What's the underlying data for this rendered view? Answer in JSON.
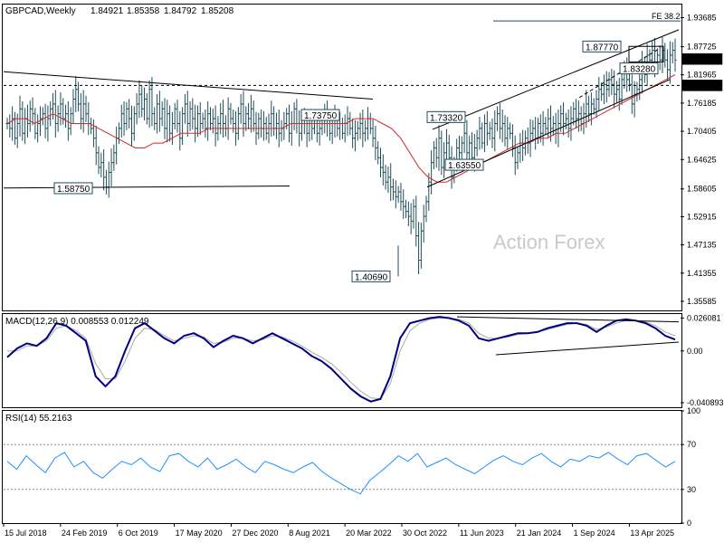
{
  "chart_data": {
    "type": "ohlc",
    "title": "GBPCAD,Weekly",
    "ohlc_readout": [
      "1.84921",
      "1.85358",
      "1.84792",
      "1.85208"
    ],
    "watermark": "Action Forex",
    "colors": {
      "bars": "#1f4e5a",
      "ma": "#d42b2b",
      "macd": "#000080",
      "signal": "#a8a8a8",
      "rsi": "#1e90ff",
      "frame": "#000000"
    },
    "x_labels": [
      "15 Jul 2018",
      "24 Feb 2019",
      "6 Oct 2019",
      "17 May 2020",
      "27 Dec 2020",
      "8 Aug 2021",
      "20 Mar 2022",
      "30 Oct 2022",
      "11 Jun 2023",
      "21 Jan 2024",
      "1 Sep 2024",
      "13 Apr 2025"
    ],
    "price_panel": {
      "ylim": [
        1.3372,
        1.9637
      ],
      "y_ticks": [
        "1.93685",
        "1.87725",
        "1.81965",
        "1.76185",
        "1.70405",
        "1.64625",
        "1.58605",
        "1.52915",
        "1.47135",
        "1.41355",
        "1.35585"
      ],
      "current_price": "1.85208",
      "marked_level": "1.79800",
      "fib_label": "FE 38.2",
      "annotations": [
        "1.87770",
        "1.83280",
        "1.73320",
        "1.63550",
        "1.73750",
        "1.58750",
        "1.40690"
      ],
      "closes": [
        1.72,
        1.71,
        1.73,
        1.69,
        1.72,
        1.75,
        1.7,
        1.73,
        1.72,
        1.75,
        1.74,
        1.7,
        1.72,
        1.73,
        1.74,
        1.71,
        1.73,
        1.75,
        1.76,
        1.72,
        1.74,
        1.76,
        1.73,
        1.74,
        1.71,
        1.74,
        1.77,
        1.79,
        1.76,
        1.73,
        1.76,
        1.74,
        1.72,
        1.71,
        1.69,
        1.66,
        1.63,
        1.64,
        1.61,
        1.59,
        1.62,
        1.64,
        1.66,
        1.69,
        1.71,
        1.74,
        1.72,
        1.75,
        1.73,
        1.7,
        1.74,
        1.76,
        1.78,
        1.75,
        1.77,
        1.73,
        1.79,
        1.74,
        1.72,
        1.76,
        1.73,
        1.75,
        1.71,
        1.74,
        1.7,
        1.72,
        1.75,
        1.72,
        1.69,
        1.74,
        1.76,
        1.72,
        1.75,
        1.73,
        1.71,
        1.74,
        1.72,
        1.73,
        1.71,
        1.74,
        1.72,
        1.73,
        1.7,
        1.72,
        1.74,
        1.72,
        1.71,
        1.75,
        1.73,
        1.72,
        1.7,
        1.74,
        1.76,
        1.72,
        1.74,
        1.73,
        1.75,
        1.72,
        1.7,
        1.73,
        1.71,
        1.72,
        1.7,
        1.72,
        1.74,
        1.71,
        1.72,
        1.7,
        1.71,
        1.72,
        1.74,
        1.7,
        1.72,
        1.75,
        1.72,
        1.7,
        1.73,
        1.72,
        1.7,
        1.72,
        1.71,
        1.73,
        1.7,
        1.71,
        1.72,
        1.74,
        1.72,
        1.7,
        1.72,
        1.73,
        1.71,
        1.72,
        1.7,
        1.72,
        1.73,
        1.71,
        1.69,
        1.7,
        1.71,
        1.72,
        1.7,
        1.71,
        1.73,
        1.71,
        1.69,
        1.67,
        1.65,
        1.63,
        1.62,
        1.6,
        1.61,
        1.59,
        1.58,
        1.57,
        1.58,
        1.56,
        1.55,
        1.54,
        1.53,
        1.52,
        1.55,
        1.49,
        1.44,
        1.5,
        1.53,
        1.56,
        1.6,
        1.64,
        1.67,
        1.65,
        1.69,
        1.63,
        1.66,
        1.68,
        1.65,
        1.61,
        1.64,
        1.67,
        1.66,
        1.68,
        1.7,
        1.66,
        1.68,
        1.65,
        1.67,
        1.69,
        1.71,
        1.68,
        1.72,
        1.7,
        1.71,
        1.69,
        1.72,
        1.74,
        1.71,
        1.72,
        1.69,
        1.71,
        1.7,
        1.67,
        1.64,
        1.66,
        1.68,
        1.67,
        1.69,
        1.68,
        1.7,
        1.71,
        1.69,
        1.72,
        1.7,
        1.72,
        1.71,
        1.73,
        1.71,
        1.72,
        1.7,
        1.72,
        1.74,
        1.72,
        1.73,
        1.71,
        1.73,
        1.75,
        1.73,
        1.74,
        1.72,
        1.74,
        1.76,
        1.74,
        1.76,
        1.75,
        1.77,
        1.79,
        1.78,
        1.8,
        1.79,
        1.81,
        1.8,
        1.78,
        1.79,
        1.77,
        1.81,
        1.83,
        1.81,
        1.8,
        1.76,
        1.78,
        1.79,
        1.81,
        1.84,
        1.82,
        1.86,
        1.85,
        1.87,
        1.84,
        1.86,
        1.85,
        1.87,
        1.85,
        1.83,
        1.86,
        1.87,
        1.85
      ],
      "ma": [
        1.72,
        1.73,
        1.73,
        1.72,
        1.73,
        1.74,
        1.73,
        1.72,
        1.72,
        1.72,
        1.71,
        1.7,
        1.69,
        1.68,
        1.67,
        1.67,
        1.68,
        1.68,
        1.69,
        1.7,
        1.7,
        1.7,
        1.71,
        1.71,
        1.71,
        1.71,
        1.71,
        1.71,
        1.71,
        1.71,
        1.71,
        1.72,
        1.72,
        1.72,
        1.72,
        1.72,
        1.72,
        1.72,
        1.73,
        1.73,
        1.73,
        1.72,
        1.71,
        1.69,
        1.66,
        1.63,
        1.61,
        1.6,
        1.6,
        1.61,
        1.62,
        1.63,
        1.64,
        1.65,
        1.66,
        1.67,
        1.68,
        1.68,
        1.69,
        1.69,
        1.7,
        1.7,
        1.71,
        1.72,
        1.73,
        1.74,
        1.75,
        1.76,
        1.77,
        1.78,
        1.79,
        1.8,
        1.81,
        1.82
      ],
      "fe_line": [
        1.93,
        1.93
      ],
      "dashed_level": [
        1.798,
        1.798
      ],
      "triangle_upper": [
        1.826,
        1.77
      ],
      "triangle_lower": [
        1.588,
        1.592
      ],
      "channel_upper": [
        1.708,
        1.912
      ],
      "channel_lower": [
        1.59,
        1.81
      ],
      "top_box": [
        1.846,
        1.878
      ]
    },
    "macd_panel": {
      "label": "MACD(12,26,9) 0.008553 0.012249",
      "ylim": [
        -0.0445,
        0.0292
      ],
      "y_ticks": [
        "0.026081",
        "0.00",
        "-0.040893"
      ],
      "macd_line": [
        -0.005,
        0.002,
        0.006,
        0.004,
        0.01,
        0.022,
        0.02,
        0.014,
        0.008,
        -0.02,
        -0.028,
        -0.02,
        0.0,
        0.018,
        0.022,
        0.016,
        0.01,
        0.006,
        0.012,
        0.014,
        0.01,
        0.003,
        0.008,
        0.012,
        0.01,
        0.006,
        0.01,
        0.014,
        0.01,
        0.006,
        0.002,
        -0.004,
        -0.008,
        -0.014,
        -0.022,
        -0.03,
        -0.036,
        -0.04,
        -0.038,
        -0.02,
        0.01,
        0.022,
        0.024,
        0.026,
        0.027,
        0.026,
        0.024,
        0.02,
        0.01,
        0.008,
        0.01,
        0.012,
        0.014,
        0.014,
        0.015,
        0.018,
        0.02,
        0.022,
        0.022,
        0.02,
        0.015,
        0.02,
        0.024,
        0.025,
        0.024,
        0.022,
        0.018,
        0.012,
        0.009
      ],
      "signal_line": [
        0.0,
        0.0,
        0.004,
        0.004,
        0.008,
        0.018,
        0.02,
        0.016,
        0.01,
        -0.01,
        -0.022,
        -0.022,
        -0.008,
        0.01,
        0.018,
        0.017,
        0.012,
        0.008,
        0.01,
        0.012,
        0.011,
        0.006,
        0.007,
        0.01,
        0.01,
        0.008,
        0.009,
        0.012,
        0.011,
        0.008,
        0.004,
        -0.001,
        -0.005,
        -0.01,
        -0.017,
        -0.025,
        -0.032,
        -0.037,
        -0.038,
        -0.026,
        0.0,
        0.016,
        0.022,
        0.025,
        0.026,
        0.026,
        0.025,
        0.022,
        0.014,
        0.01,
        0.01,
        0.011,
        0.013,
        0.014,
        0.015,
        0.017,
        0.019,
        0.021,
        0.022,
        0.021,
        0.017,
        0.019,
        0.022,
        0.024,
        0.024,
        0.023,
        0.02,
        0.015,
        0.012
      ],
      "trend_upper": [
        0.027,
        0.023
      ],
      "trend_lower": [
        -0.003,
        0.007
      ]
    },
    "rsi_panel": {
      "label": "RSI(14) 55.2163",
      "ylim": [
        0,
        100
      ],
      "y_ticks": [
        "100",
        "70",
        "30",
        "0"
      ],
      "levels": [
        30,
        70
      ],
      "values": [
        55,
        48,
        60,
        52,
        45,
        58,
        63,
        50,
        55,
        45,
        40,
        48,
        55,
        52,
        58,
        50,
        46,
        60,
        62,
        55,
        50,
        58,
        48,
        52,
        57,
        50,
        45,
        55,
        52,
        48,
        45,
        50,
        54,
        46,
        40,
        35,
        30,
        26,
        38,
        45,
        52,
        60,
        55,
        62,
        50,
        54,
        58,
        52,
        48,
        44,
        50,
        56,
        60,
        55,
        52,
        58,
        62,
        55,
        50,
        57,
        55,
        60,
        58,
        63,
        57,
        52,
        60,
        62,
        56,
        50,
        55
      ]
    }
  }
}
